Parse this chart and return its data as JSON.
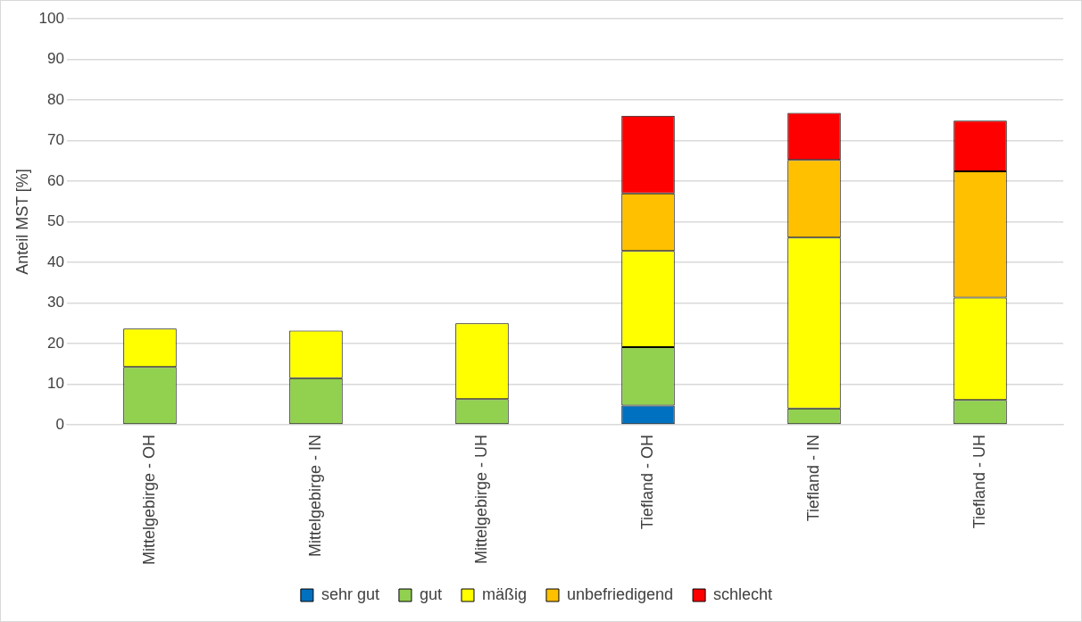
{
  "chart_data": {
    "type": "bar",
    "stacked": true,
    "ylabel": "Anteil MST [%]",
    "categories": [
      "Mittelgebirge - OH",
      "Mittelgebirge - IN",
      "Mittelgebirge - UH",
      "Tiefland - OH",
      "Tiefland - IN",
      "Tiefland - UH"
    ],
    "series": [
      {
        "name": "sehr gut",
        "color": "#0070c0",
        "values": [
          null,
          null,
          null,
          4.7,
          null,
          null
        ]
      },
      {
        "name": "gut",
        "color": "#92d050",
        "values": [
          14.2,
          11.5,
          6.3,
          14.4,
          4.0,
          6.1
        ]
      },
      {
        "name": "mäßig",
        "color": "#ffff00",
        "values": [
          9.5,
          11.7,
          18.7,
          23.7,
          42.1,
          25.2
        ]
      },
      {
        "name": "unbefriedigend",
        "color": "#ffc000",
        "values": [
          null,
          null,
          null,
          14.2,
          19.1,
          31.1
        ]
      },
      {
        "name": "schlecht",
        "color": "#ff0000",
        "values": [
          null,
          null,
          null,
          19.1,
          11.6,
          12.5
        ]
      }
    ],
    "ylim": [
      0,
      100
    ],
    "yticks": [
      0,
      10,
      20,
      30,
      40,
      50,
      60,
      70,
      80,
      90,
      100
    ],
    "grid": "y",
    "legend": "bottom"
  }
}
